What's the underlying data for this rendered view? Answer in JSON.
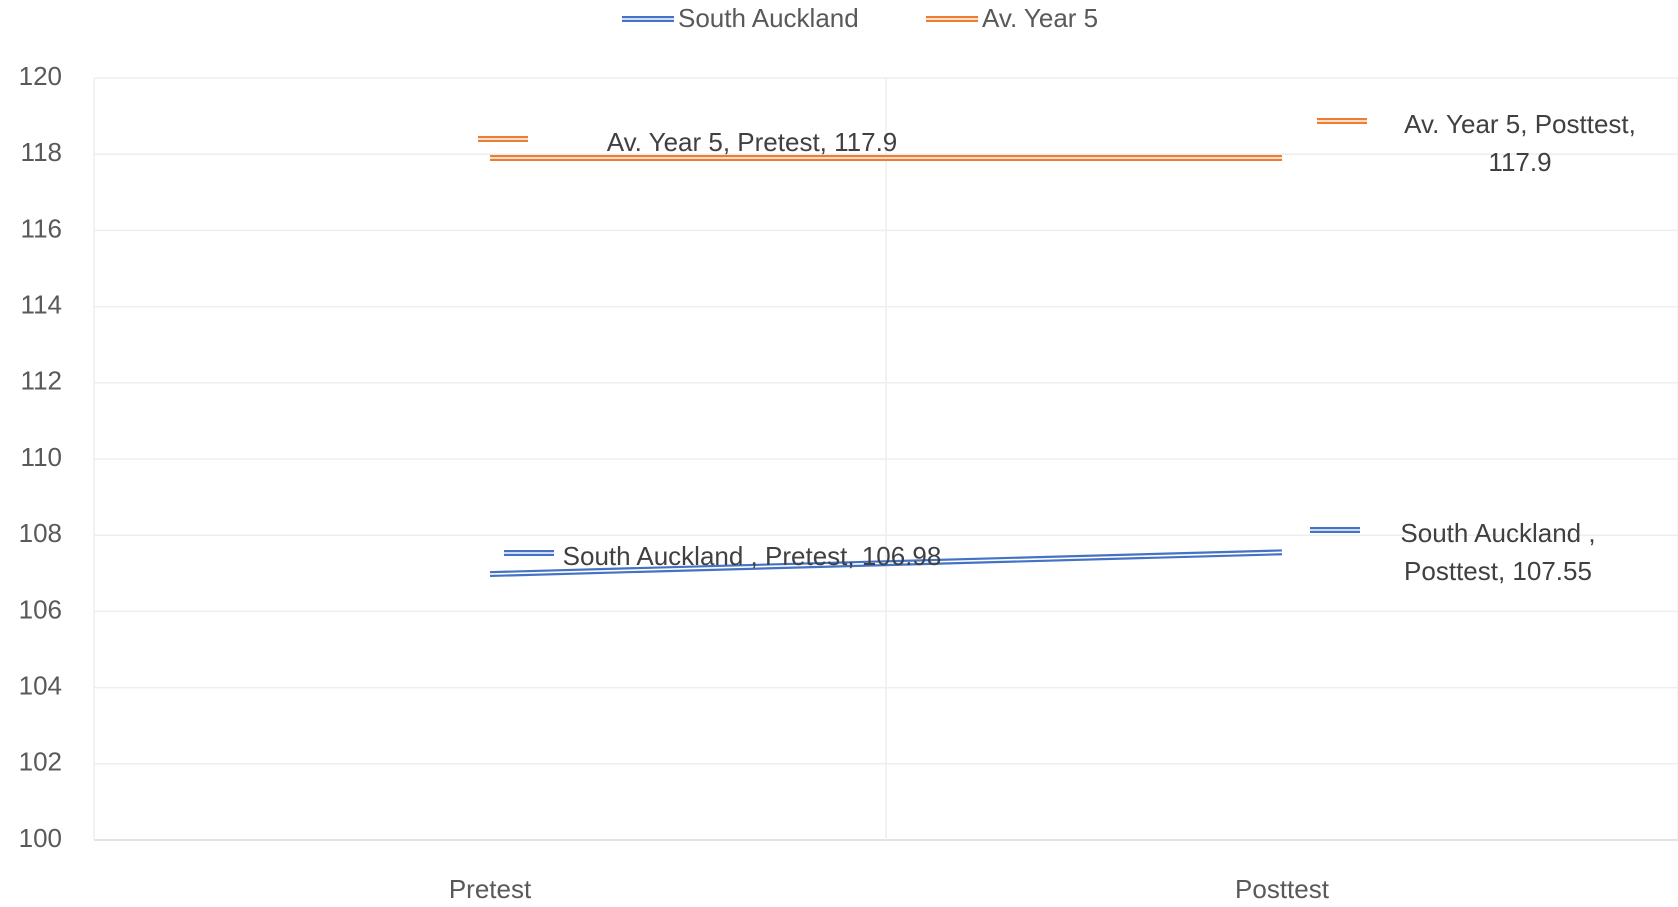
{
  "chart_data": {
    "type": "line",
    "categories": [
      "Pretest",
      "Posttest"
    ],
    "series": [
      {
        "name": "South Auckland",
        "color": "#4472c4",
        "values": [
          106.98,
          107.55
        ],
        "value_labels": [
          "South Auckland , Pretest, 106.98",
          "South Auckland , Posttest, 107.55"
        ]
      },
      {
        "name": "Av. Year 5",
        "color": "#ed7d31",
        "values": [
          117.9,
          117.9
        ],
        "value_labels": [
          "Av. Year 5, Pretest, 117.9",
          "Av. Year 5, Posttest, 117.9"
        ]
      }
    ],
    "ylim": [
      100,
      120
    ],
    "yticks": [
      100,
      102,
      104,
      106,
      108,
      110,
      112,
      114,
      116,
      118,
      120
    ],
    "grid": true,
    "legend": "top"
  }
}
